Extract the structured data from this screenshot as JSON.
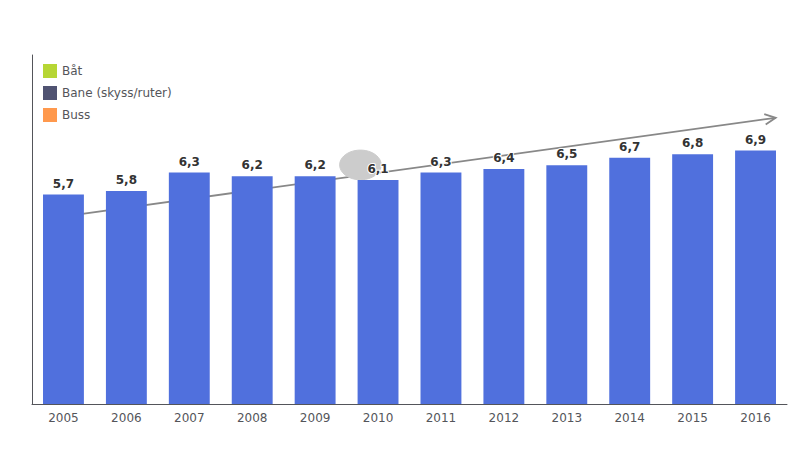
{
  "chart_data": {
    "type": "bar",
    "categories": [
      "2005",
      "2006",
      "2007",
      "2008",
      "2009",
      "2010",
      "2011",
      "2012",
      "2013",
      "2014",
      "2015",
      "2016"
    ],
    "values": [
      5.7,
      5.8,
      6.3,
      6.2,
      6.2,
      6.1,
      6.3,
      6.4,
      6.5,
      6.7,
      6.8,
      6.9
    ],
    "value_labels": [
      "5,7",
      "5,8",
      "6,3",
      "6,2",
      "6,2",
      "6,1",
      "6,3",
      "6,4",
      "6,5",
      "6,7",
      "6,8",
      "6,9"
    ],
    "data_labels": true,
    "ylim": [
      0,
      9.5
    ],
    "yticks": [],
    "grid": false,
    "tick_labels": "x",
    "legend": "upper left",
    "legend_labels": [
      "Båt",
      "Bane (skyss/ruter)",
      "Buss"
    ]
  }
}
